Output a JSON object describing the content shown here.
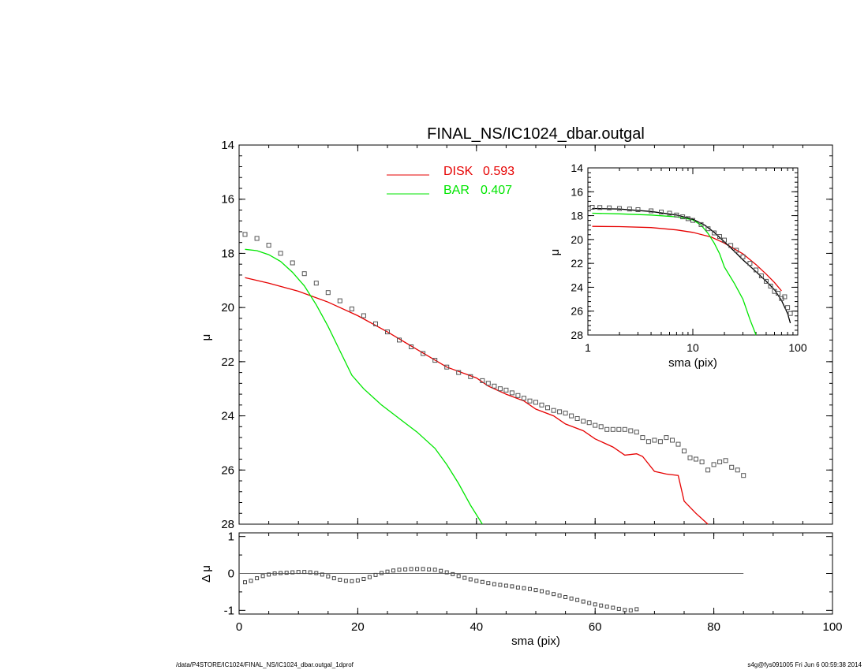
{
  "title": "FINAL_NS/IC1024_dbar.outgal",
  "footer": {
    "left": "/data/P4STORE/IC1024/FINAL_NS/IC1024_dbar.outgal_1dprof",
    "right": "s4g@fys091005  Fri Jun  6 00:59:38 2014"
  },
  "colors": {
    "disk": "#e60000",
    "bar": "#00e600",
    "data": "#555555",
    "axis": "#000000"
  },
  "chart_data": [
    {
      "id": "main",
      "type": "line",
      "ylabel": "μ",
      "xlim": [
        0,
        100
      ],
      "ylim": [
        14,
        28
      ],
      "y_inverted": true,
      "xticks": [
        "0",
        "20",
        "40",
        "60",
        "80",
        "100"
      ],
      "yticks": [
        "14",
        "16",
        "18",
        "20",
        "22",
        "24",
        "26",
        "28"
      ],
      "legend_position": "top-center",
      "legend": [
        {
          "label": "DISK",
          "value": "0.593",
          "color": "#e60000"
        },
        {
          "label": "BAR",
          "value": "0.407",
          "color": "#00e600"
        }
      ],
      "series": [
        {
          "name": "DISK",
          "kind": "line",
          "color": "#e60000",
          "x": [
            1,
            5,
            10,
            15,
            20,
            25,
            30,
            35,
            40,
            42,
            45,
            48,
            50,
            53,
            55,
            58,
            60,
            63,
            65,
            67,
            68,
            70,
            72,
            74,
            75,
            77,
            79
          ],
          "y": [
            18.9,
            19.1,
            19.4,
            19.8,
            20.3,
            20.9,
            21.55,
            22.2,
            22.6,
            22.9,
            23.2,
            23.45,
            23.75,
            24.0,
            24.3,
            24.55,
            24.85,
            25.15,
            25.45,
            25.4,
            25.5,
            26.05,
            26.15,
            26.2,
            27.15,
            27.6,
            28.0
          ]
        },
        {
          "name": "BAR",
          "kind": "line",
          "color": "#00e600",
          "x": [
            1,
            3,
            5,
            7,
            9,
            11,
            13,
            15,
            17,
            19,
            21,
            24,
            27,
            30,
            33,
            35,
            37,
            39,
            41
          ],
          "y": [
            17.85,
            17.9,
            18.05,
            18.3,
            18.7,
            19.2,
            19.9,
            20.7,
            21.6,
            22.5,
            23.0,
            23.6,
            24.1,
            24.6,
            25.2,
            25.8,
            26.5,
            27.3,
            28.0
          ]
        },
        {
          "name": "data",
          "kind": "scatter",
          "color": "#555555",
          "x": [
            1,
            3,
            5,
            7,
            9,
            11,
            13,
            15,
            17,
            19,
            21,
            23,
            25,
            27,
            29,
            31,
            33,
            35,
            37,
            39,
            41,
            42,
            43,
            44,
            45,
            46,
            47,
            48,
            49,
            50,
            51,
            52,
            53,
            54,
            55,
            56,
            57,
            58,
            59,
            60,
            61,
            62,
            63,
            64,
            65,
            66,
            67,
            68,
            69,
            70,
            71,
            72,
            73,
            74,
            75,
            76,
            77,
            78,
            79,
            80,
            81,
            82,
            83,
            84,
            85
          ],
          "y": [
            17.3,
            17.45,
            17.7,
            18.0,
            18.35,
            18.75,
            19.1,
            19.45,
            19.75,
            20.05,
            20.3,
            20.6,
            20.9,
            21.2,
            21.45,
            21.7,
            21.95,
            22.2,
            22.4,
            22.55,
            22.7,
            22.8,
            22.9,
            23.0,
            23.05,
            23.15,
            23.25,
            23.35,
            23.45,
            23.5,
            23.6,
            23.7,
            23.8,
            23.85,
            23.9,
            24.0,
            24.1,
            24.2,
            24.25,
            24.35,
            24.4,
            24.5,
            24.5,
            24.5,
            24.5,
            24.55,
            24.6,
            24.8,
            24.95,
            24.9,
            24.95,
            24.8,
            24.9,
            25.05,
            25.3,
            25.55,
            25.6,
            25.7,
            26.0,
            25.8,
            25.7,
            25.65,
            25.9,
            26.0,
            26.2
          ]
        }
      ]
    },
    {
      "id": "inset",
      "type": "line",
      "xlabel": "sma (pix)",
      "ylabel": "μ",
      "x_scale": "log",
      "xlim": [
        1,
        100
      ],
      "ylim": [
        14,
        28
      ],
      "y_inverted": true,
      "xticks": [
        "1",
        "10",
        "100"
      ],
      "yticks": [
        "14",
        "16",
        "18",
        "20",
        "22",
        "24",
        "26",
        "28"
      ],
      "series": [
        {
          "name": "DISK",
          "kind": "line",
          "color": "#e60000",
          "x": [
            1.1,
            2,
            4,
            7,
            10,
            15,
            20,
            30,
            40,
            50,
            60,
            70
          ],
          "y": [
            18.9,
            18.92,
            19.0,
            19.2,
            19.4,
            19.8,
            20.3,
            21.2,
            22.1,
            22.9,
            23.6,
            24.3
          ]
        },
        {
          "name": "BAR",
          "kind": "line",
          "color": "#00e600",
          "x": [
            1.1,
            2,
            4,
            7,
            10,
            12,
            14,
            16,
            18,
            20,
            25,
            30,
            35,
            40
          ],
          "y": [
            17.8,
            17.85,
            17.95,
            18.1,
            18.35,
            18.8,
            19.5,
            20.3,
            21.2,
            22.3,
            23.7,
            25.0,
            26.7,
            28.0
          ]
        },
        {
          "name": "model",
          "kind": "line",
          "color": "#000000",
          "x": [
            1.1,
            2,
            4,
            7,
            10,
            13,
            16,
            20,
            25,
            30,
            40,
            50,
            60,
            70,
            80,
            85
          ],
          "y": [
            17.4,
            17.45,
            17.65,
            17.95,
            18.3,
            18.8,
            19.4,
            20.2,
            21.0,
            21.7,
            22.7,
            23.5,
            24.2,
            25.1,
            26.2,
            27.0
          ]
        },
        {
          "name": "data",
          "kind": "scatter",
          "color": "#555555",
          "x": [
            1.1,
            1.3,
            1.6,
            2,
            2.5,
            3,
            4,
            5,
            6,
            7,
            8,
            9,
            10,
            12,
            14,
            16,
            18,
            20,
            23,
            26,
            30,
            35,
            40,
            45,
            50,
            55,
            60,
            65,
            70,
            75,
            80,
            85
          ],
          "y": [
            17.3,
            17.32,
            17.35,
            17.4,
            17.45,
            17.5,
            17.6,
            17.7,
            17.8,
            17.95,
            18.1,
            18.25,
            18.4,
            18.75,
            19.1,
            19.45,
            19.75,
            20.05,
            20.5,
            20.9,
            21.45,
            22.0,
            22.55,
            23.05,
            23.5,
            23.9,
            24.35,
            24.5,
            24.95,
            24.8,
            25.7,
            26.2
          ]
        }
      ]
    },
    {
      "id": "residual",
      "type": "scatter",
      "xlabel": "sma (pix)",
      "ylabel": "Δ μ",
      "xlim": [
        0,
        100
      ],
      "ylim": [
        -1.1,
        1.1
      ],
      "xticks": [
        "0",
        "20",
        "40",
        "60",
        "80",
        "100"
      ],
      "yticks": [
        "1",
        "0",
        "-1"
      ],
      "reference_line": {
        "y": 0,
        "x": [
          0,
          85
        ]
      },
      "series": [
        {
          "name": "residual",
          "kind": "scatter",
          "color": "#444444",
          "x": [
            1,
            2,
            3,
            4,
            5,
            6,
            7,
            8,
            9,
            10,
            11,
            12,
            13,
            14,
            15,
            16,
            17,
            18,
            19,
            20,
            21,
            22,
            23,
            24,
            25,
            26,
            27,
            28,
            29,
            30,
            31,
            32,
            33,
            34,
            35,
            36,
            37,
            38,
            39,
            40,
            41,
            42,
            43,
            44,
            45,
            46,
            47,
            48,
            49,
            50,
            51,
            52,
            53,
            54,
            55,
            56,
            57,
            58,
            59,
            60,
            61,
            62,
            63,
            64,
            65,
            66,
            67
          ],
          "y": [
            -0.24,
            -0.2,
            -0.13,
            -0.07,
            -0.03,
            0.0,
            0.01,
            0.02,
            0.03,
            0.04,
            0.04,
            0.03,
            0.01,
            -0.03,
            -0.08,
            -0.13,
            -0.17,
            -0.2,
            -0.21,
            -0.19,
            -0.15,
            -0.1,
            -0.04,
            0.01,
            0.05,
            0.08,
            0.1,
            0.11,
            0.12,
            0.12,
            0.12,
            0.11,
            0.1,
            0.07,
            0.03,
            -0.02,
            -0.07,
            -0.12,
            -0.16,
            -0.2,
            -0.23,
            -0.26,
            -0.29,
            -0.31,
            -0.33,
            -0.35,
            -0.38,
            -0.4,
            -0.42,
            -0.45,
            -0.48,
            -0.52,
            -0.56,
            -0.6,
            -0.64,
            -0.68,
            -0.72,
            -0.76,
            -0.8,
            -0.84,
            -0.87,
            -0.9,
            -0.93,
            -0.96,
            -0.99,
            -1.0,
            -0.97
          ]
        }
      ]
    }
  ]
}
